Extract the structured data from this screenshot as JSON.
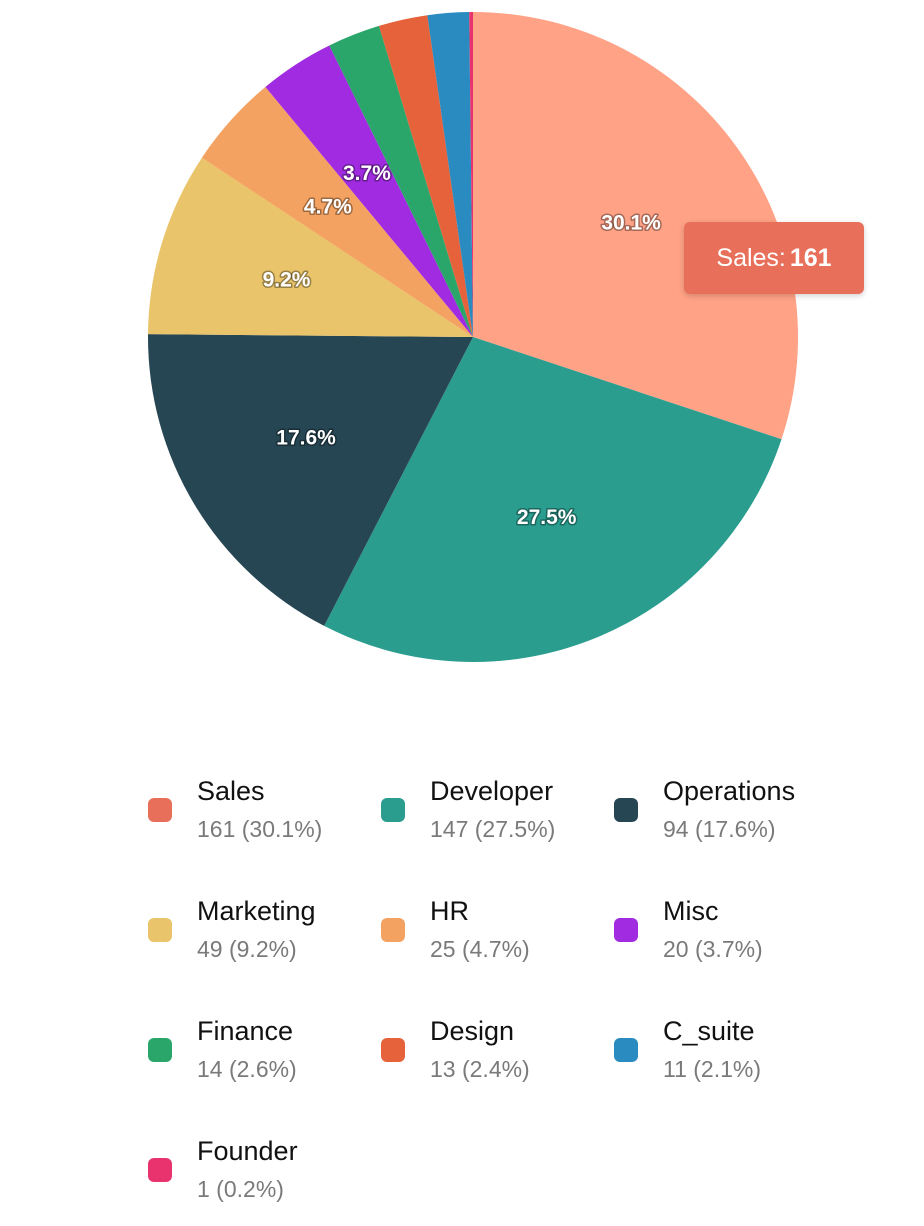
{
  "chart_data": {
    "type": "pie",
    "slices": [
      {
        "name": "Sales",
        "value": 161,
        "percent_label": "30.1%",
        "legend_value": "161 (30.1%)",
        "color": "#FFA286",
        "legend_color": "#E8705A"
      },
      {
        "name": "Developer",
        "value": 147,
        "percent_label": "27.5%",
        "legend_value": "147 (27.5%)",
        "color": "#2A9D8F",
        "legend_color": "#2A9D8F"
      },
      {
        "name": "Operations",
        "value": 94,
        "percent_label": "17.6%",
        "legend_value": "94 (17.6%)",
        "color": "#264653",
        "legend_color": "#264653"
      },
      {
        "name": "Marketing",
        "value": 49,
        "percent_label": "9.2%",
        "legend_value": "49 (9.2%)",
        "color": "#E9C46A",
        "legend_color": "#E9C46A"
      },
      {
        "name": "HR",
        "value": 25,
        "percent_label": "4.7%",
        "legend_value": "25 (4.7%)",
        "color": "#F4A261",
        "legend_color": "#F4A261"
      },
      {
        "name": "Misc",
        "value": 20,
        "percent_label": "3.7%",
        "legend_value": "20 (3.7%)",
        "color": "#A02BE0",
        "legend_color": "#A02BE0"
      },
      {
        "name": "Finance",
        "value": 14,
        "percent_label": "",
        "legend_value": "14 (2.6%)",
        "color": "#2BA66B",
        "legend_color": "#2BA66B"
      },
      {
        "name": "Design",
        "value": 13,
        "percent_label": "",
        "legend_value": "13 (2.4%)",
        "color": "#E5623A",
        "legend_color": "#E5623A"
      },
      {
        "name": "C_suite",
        "value": 11,
        "percent_label": "",
        "legend_value": "11 (2.1%)",
        "color": "#2A8BC1",
        "legend_color": "#2A8BC1"
      },
      {
        "name": "Founder",
        "value": 1,
        "percent_label": "",
        "legend_value": "1 (0.2%)",
        "color": "#E8336F",
        "legend_color": "#E8336F"
      }
    ],
    "legend_placement": "bottom",
    "tooltip": {
      "label": "Sales:",
      "value": "161",
      "color": "#E8705A"
    }
  }
}
